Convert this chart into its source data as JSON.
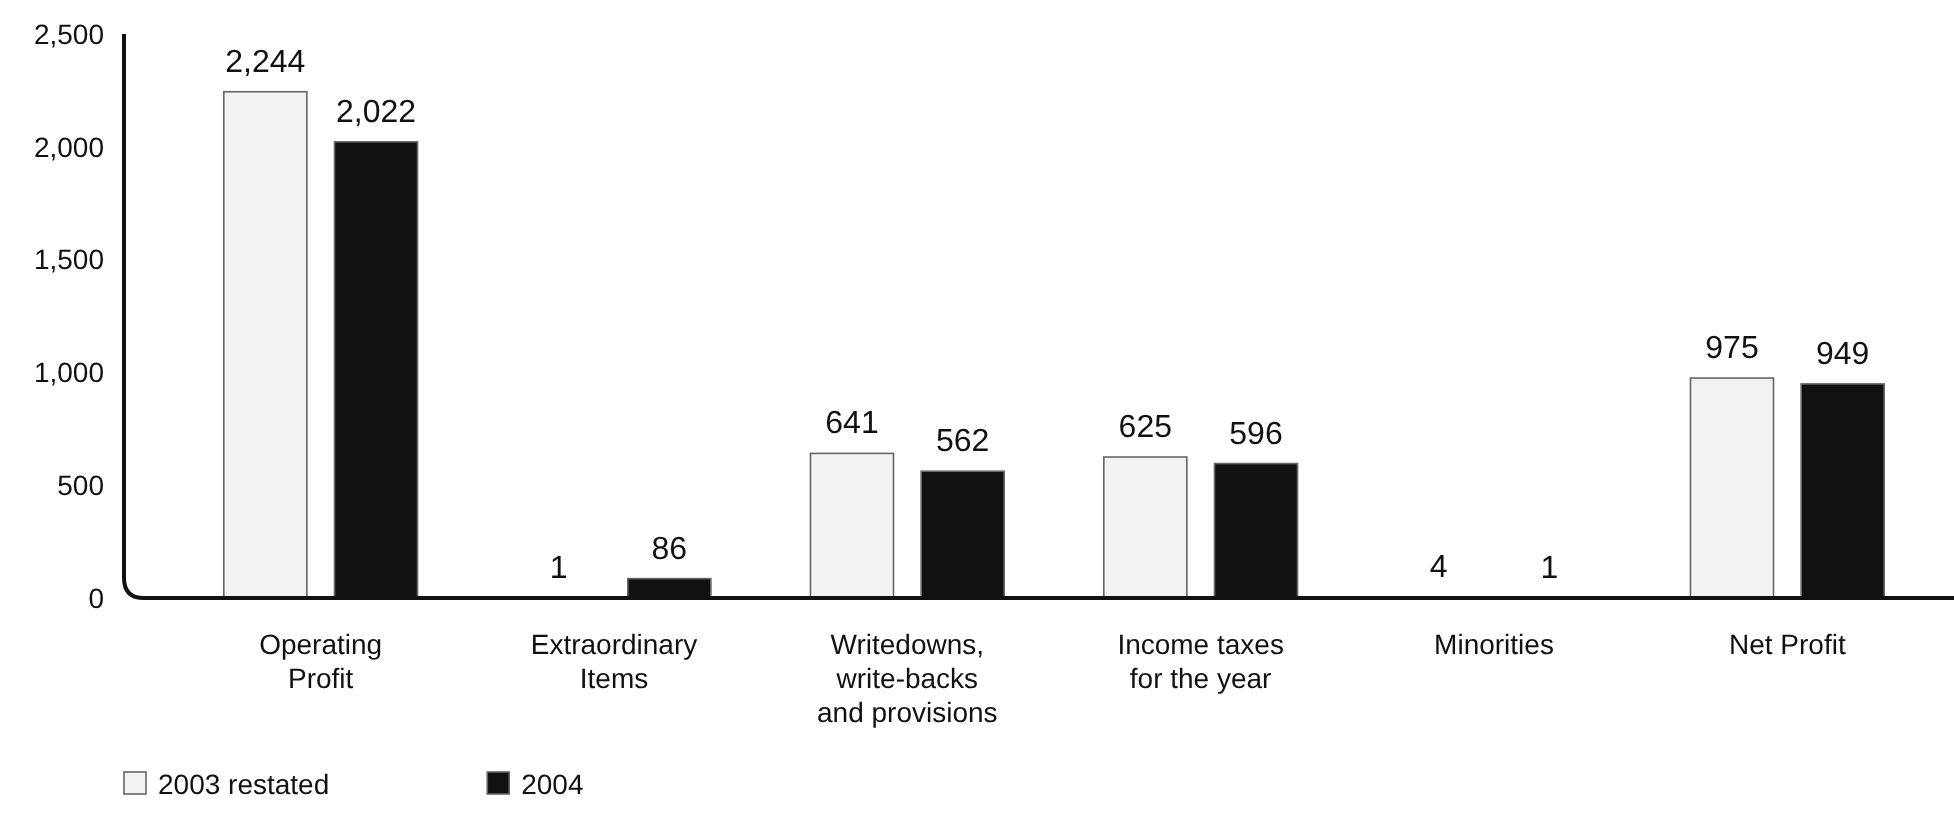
{
  "chart_data": {
    "type": "bar",
    "categories": [
      "Operating Profit",
      "Extraordinary Items",
      "Writedowns, write-backs and provisions",
      "Income taxes for the year",
      "Minorities",
      "Net Profit"
    ],
    "series": [
      {
        "name": "2003 restated",
        "color": "#f2f2f2",
        "values": [
          2244,
          1,
          641,
          625,
          4,
          975
        ],
        "value_labels": [
          "2,244",
          "1",
          "641",
          "625",
          "4",
          "975"
        ]
      },
      {
        "name": "2004",
        "color": "#111111",
        "values": [
          2022,
          86,
          562,
          596,
          1,
          949
        ],
        "value_labels": [
          "2,022",
          "86",
          "562",
          "596",
          "1",
          "949"
        ]
      }
    ],
    "ylim": [
      0,
      2500
    ],
    "yticks": [
      0,
      500,
      {
        "value": 1000,
        "label": "1,000"
      },
      {
        "value": 1500,
        "label": "1,500"
      },
      {
        "value": 2000,
        "label": "2,000"
      },
      {
        "value": 2500,
        "label": "2,500"
      }
    ],
    "legend": "bottom left"
  }
}
